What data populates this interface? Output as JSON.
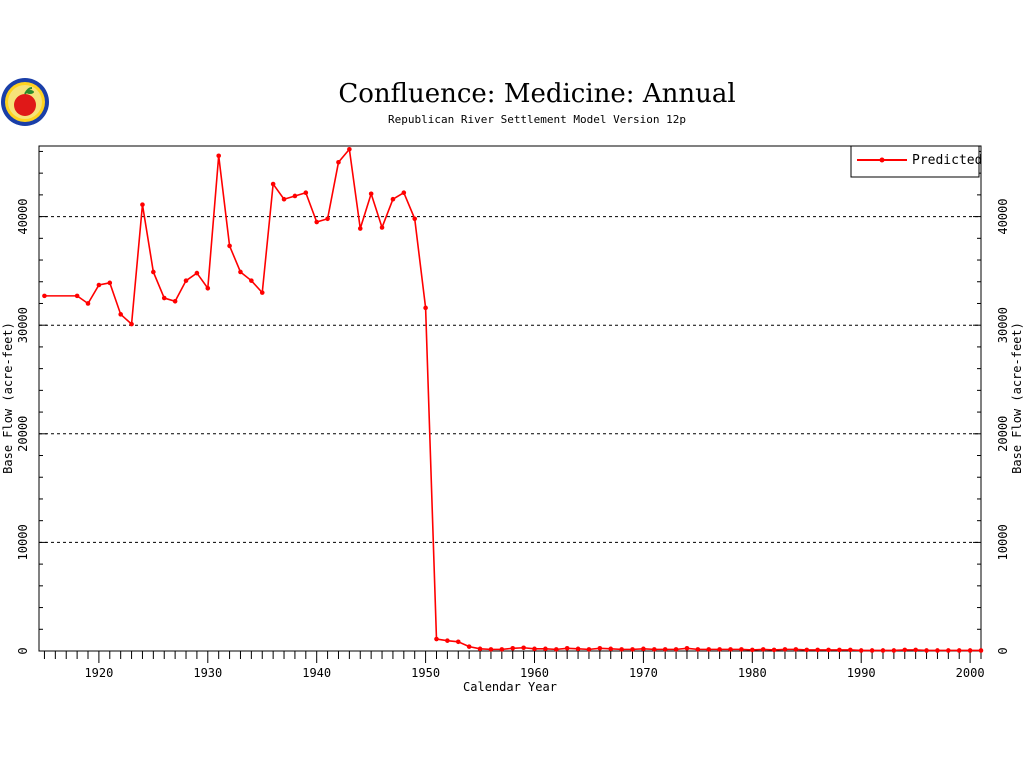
{
  "logo": {
    "icon": "apple-logo-icon"
  },
  "chart_data": {
    "type": "line",
    "title": "Confluence:  Medicine:  Annual",
    "subtitle": "Republican River Settlement Model Version 12p",
    "xlabel": "Calendar Year",
    "ylabel": "Base Flow (acre-feet)",
    "ylabel_right": "Base Flow (acre-feet)",
    "xlim": [
      1914.5,
      2001
    ],
    "ylim": [
      0,
      46500
    ],
    "x_ticks": [
      1920,
      1930,
      1940,
      1950,
      1960,
      1970,
      1980,
      1990,
      2000
    ],
    "x_tick_labels": [
      "1920",
      "1930",
      "1940",
      "1950",
      "1960",
      "1970",
      "1980",
      "1990",
      "2000"
    ],
    "y_ticks": [
      0,
      10000,
      20000,
      30000,
      40000
    ],
    "y_tick_labels": [
      "0",
      "10000",
      "20000",
      "30000",
      "40000"
    ],
    "grid": "horizontal dashed",
    "legend_position": "top-right",
    "series": [
      {
        "name": "Predicted",
        "color": "#ff0000",
        "x": [
          1915,
          1918,
          1919,
          1920,
          1921,
          1922,
          1923,
          1924,
          1925,
          1926,
          1927,
          1928,
          1929,
          1930,
          1931,
          1932,
          1933,
          1934,
          1935,
          1936,
          1937,
          1938,
          1939,
          1940,
          1941,
          1942,
          1943,
          1944,
          1945,
          1946,
          1947,
          1948,
          1949,
          1950,
          1951,
          1952,
          1953,
          1954,
          1955,
          1956,
          1957,
          1958,
          1959,
          1960,
          1961,
          1962,
          1963,
          1964,
          1965,
          1966,
          1967,
          1968,
          1969,
          1970,
          1971,
          1972,
          1973,
          1974,
          1975,
          1976,
          1977,
          1978,
          1979,
          1980,
          1981,
          1982,
          1983,
          1984,
          1985,
          1986,
          1987,
          1988,
          1989,
          1990,
          1991,
          1992,
          1993,
          1994,
          1995,
          1996,
          1997,
          1998,
          1999,
          2000,
          2001
        ],
        "y": [
          32700,
          32700,
          32000,
          33700,
          33900,
          31000,
          30100,
          41100,
          34900,
          32500,
          32200,
          34100,
          34800,
          33400,
          45600,
          37300,
          34900,
          34100,
          33000,
          43000,
          41600,
          41900,
          42200,
          39500,
          39800,
          45000,
          46200,
          38900,
          42100,
          39000,
          41600,
          42200,
          39800,
          31600,
          1100,
          950,
          850,
          400,
          200,
          150,
          150,
          250,
          300,
          200,
          200,
          150,
          250,
          200,
          150,
          250,
          200,
          150,
          150,
          200,
          150,
          150,
          150,
          250,
          150,
          150,
          150,
          150,
          150,
          100,
          150,
          100,
          150,
          150,
          100,
          100,
          100,
          100,
          100,
          50,
          50,
          50,
          50,
          100,
          100,
          50,
          50,
          50,
          50,
          50,
          50
        ]
      }
    ]
  }
}
